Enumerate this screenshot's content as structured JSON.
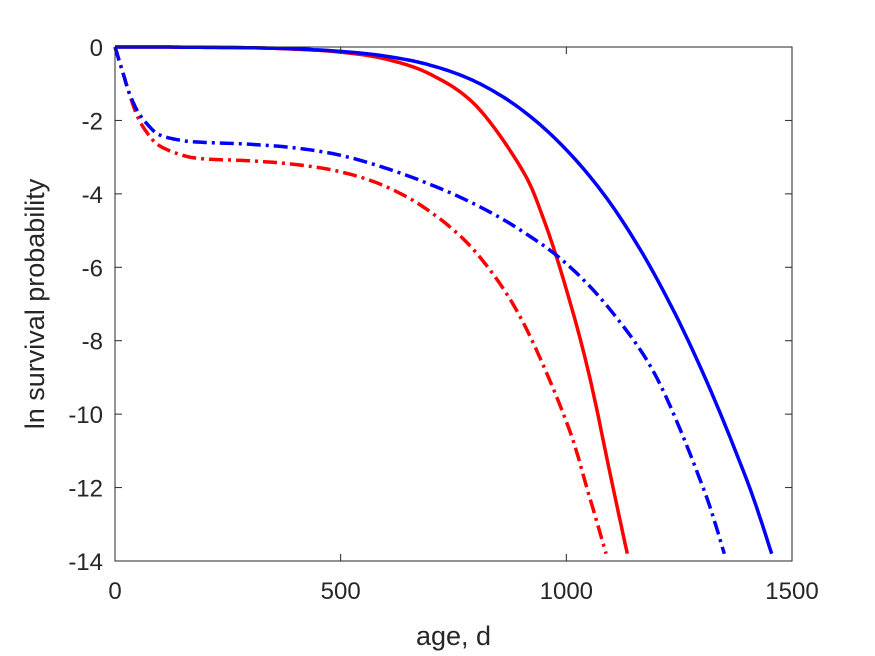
{
  "chart_data": {
    "type": "line",
    "title": "",
    "xlabel": "age, d",
    "ylabel": "ln survival probability",
    "xlim": [
      0,
      1500
    ],
    "ylim": [
      -14,
      0
    ],
    "xticks": [
      0,
      500,
      1000,
      1500
    ],
    "yticks": [
      0,
      -2,
      -4,
      -6,
      -8,
      -10,
      -12,
      -14
    ],
    "xtick_labels": [
      "0",
      "500",
      "1000",
      "1500"
    ],
    "ytick_labels": [
      "0",
      "-2",
      "-4",
      "-6",
      "-8",
      "-10",
      "-12",
      "-14"
    ],
    "grid": false,
    "legend": "none",
    "series": [
      {
        "color": "#ff0000",
        "style": "solid",
        "x": [
          0,
          100,
          200,
          300,
          400,
          500,
          600,
          700,
          800,
          900,
          950,
          1000,
          1050,
          1100,
          1135
        ],
        "y": [
          0,
          0,
          -0.01,
          -0.02,
          -0.06,
          -0.14,
          -0.33,
          -0.75,
          -1.6,
          -3.3,
          -4.7,
          -6.6,
          -8.9,
          -11.8,
          -13.8
        ]
      },
      {
        "color": "#0000ff",
        "style": "solid",
        "x": [
          0,
          100,
          200,
          300,
          400,
          500,
          600,
          700,
          800,
          900,
          1000,
          1100,
          1200,
          1300,
          1400,
          1455
        ],
        "y": [
          0,
          0,
          -0.01,
          -0.02,
          -0.05,
          -0.12,
          -0.25,
          -0.5,
          -0.95,
          -1.7,
          -2.8,
          -4.3,
          -6.3,
          -8.8,
          -11.8,
          -13.8
        ]
      },
      {
        "color": "#ff0000",
        "style": "dashdot",
        "x": [
          0,
          10,
          20,
          30,
          50,
          75,
          100,
          150,
          200,
          300,
          400,
          500,
          600,
          700,
          800,
          900,
          1000,
          1050,
          1088
        ],
        "y": [
          0,
          -0.4,
          -0.8,
          -1.2,
          -1.9,
          -2.4,
          -2.7,
          -2.95,
          -3.05,
          -3.1,
          -3.2,
          -3.4,
          -3.8,
          -4.5,
          -5.6,
          -7.4,
          -10.2,
          -12.2,
          -13.8
        ]
      },
      {
        "color": "#0000ff",
        "style": "dashdot",
        "x": [
          0,
          10,
          20,
          30,
          50,
          75,
          100,
          150,
          200,
          300,
          400,
          500,
          600,
          700,
          800,
          900,
          1000,
          1100,
          1200,
          1300,
          1350
        ],
        "y": [
          0,
          -0.4,
          -0.8,
          -1.2,
          -1.75,
          -2.15,
          -2.4,
          -2.55,
          -2.6,
          -2.65,
          -2.75,
          -2.95,
          -3.3,
          -3.75,
          -4.3,
          -5.0,
          -5.9,
          -7.2,
          -9.0,
          -11.9,
          -13.8
        ]
      }
    ]
  }
}
